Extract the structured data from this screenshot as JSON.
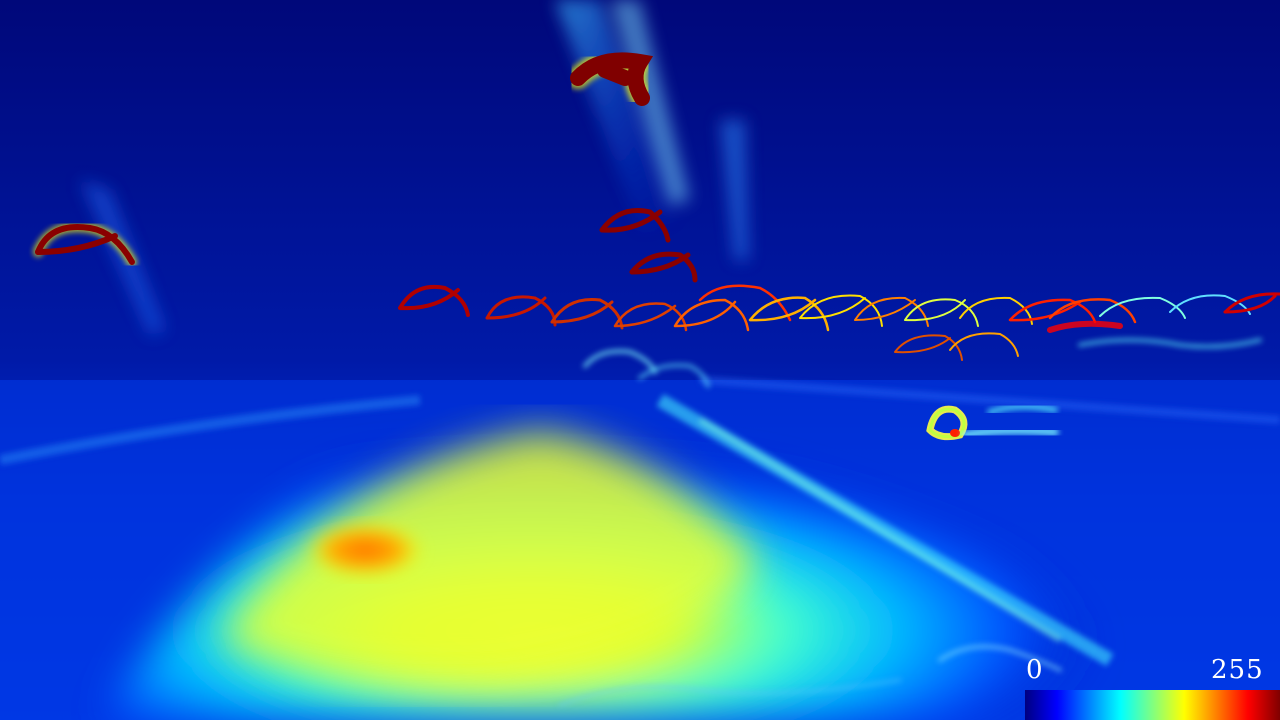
{
  "image": {
    "type": "event-camera-heatmap",
    "colormap": "jet",
    "description_icon": "heatmap-scene"
  },
  "colorbar": {
    "min_label": "0",
    "max_label": "255",
    "colors": [
      "#000080",
      "#0000ff",
      "#0080ff",
      "#00ffff",
      "#80ff80",
      "#ffff00",
      "#ff8000",
      "#ff0000",
      "#800000"
    ]
  }
}
